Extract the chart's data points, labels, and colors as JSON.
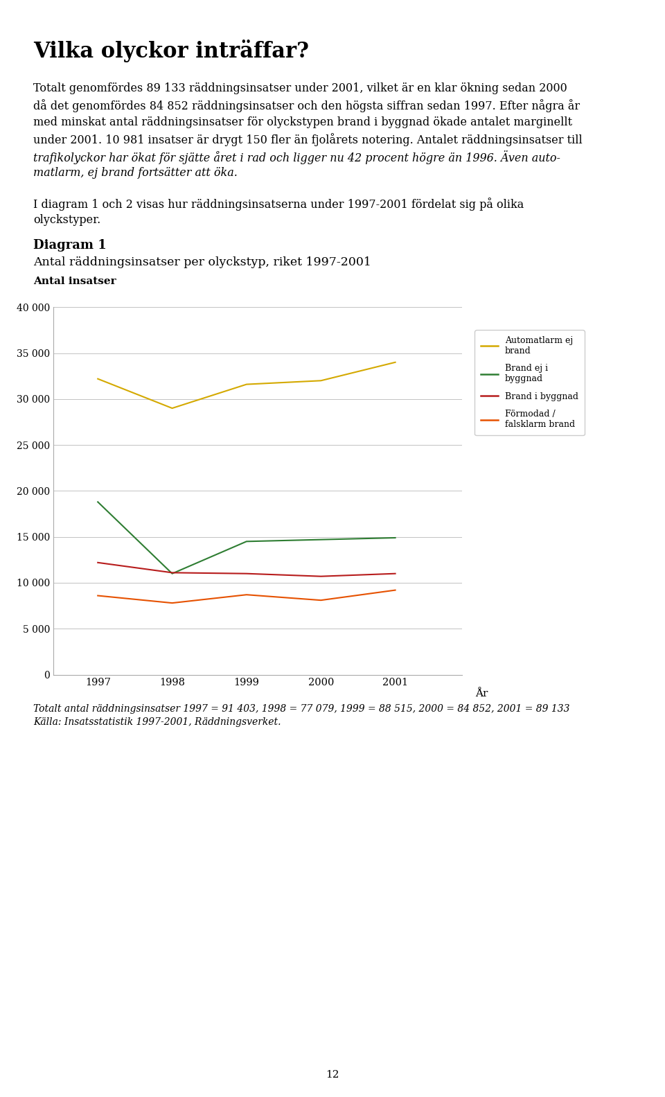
{
  "page_title": "Vilka olyckor inträffar?",
  "body_text_lines": [
    "Totalt genomfördes 89 133 räddningsinsatser under 2001, vilket är en klar ökning sedan 2000",
    "då det genomfördes 84 852 räddningsinsatser och den högsta siffran sedan 1997. Efter några år",
    "med minskat antal räddningsinsatser för olyckstypen brand i byggnad ökade antalet marginellt",
    "under 2001. 10 981 insatser är drygt 150 fler än fjolårets notering. Antalet räddningsinsatser till",
    "trafikolyckor har ökat för sjätte året i rad och ligger nu 42 procent högre än 1996. Även auto-",
    "matlarm, ej brand fortsätter att öka."
  ],
  "body_text_italic_ranges": [
    [
      4,
      13,
      24
    ],
    [
      5,
      0,
      7
    ]
  ],
  "body_text2_lines": [
    "I diagram 1 och 2 visas hur räddningsinsatserna under 1997-2001 fördelat sig på olika",
    "olyckstyper."
  ],
  "diagram_label": "Diagram 1",
  "chart_title": "Antal räddningsinsatser per olyckstyp, riket 1997-2001",
  "ylabel": "Antal insatser",
  "xlabel": "År",
  "years": [
    1997,
    1998,
    1999,
    2000,
    2001
  ],
  "series": [
    {
      "label": "Automatlarm ej\nbrand",
      "values": [
        32200,
        29000,
        31600,
        32000,
        34000
      ],
      "color": "#d4a900"
    },
    {
      "label": "Brand ej i\nbyggnad",
      "values": [
        18800,
        11000,
        14500,
        14700,
        14900
      ],
      "color": "#2e7d32"
    },
    {
      "label": "Brand i byggnad",
      "values": [
        12200,
        11100,
        11000,
        10700,
        11000
      ],
      "color": "#b71c1c"
    },
    {
      "label": "Förmodad /\nfalsklarm brand",
      "values": [
        8600,
        7800,
        8700,
        8100,
        9200
      ],
      "color": "#e65100"
    }
  ],
  "ylim": [
    0,
    40000
  ],
  "yticks": [
    0,
    5000,
    10000,
    15000,
    20000,
    25000,
    30000,
    35000,
    40000
  ],
  "ytick_labels": [
    "0",
    "5 000",
    "10 000",
    "15 000",
    "20 000",
    "25 000",
    "30 000",
    "35 000",
    "40 000"
  ],
  "footnote": "Totalt antal räddningsinsatser 1997 = 91 403, 1998 = 77 079, 1999 = 88 515, 2000 = 84 852, 2001 = 89 133",
  "source": "Källa: Insatsstatistik 1997-2001, Räddningsverket.",
  "page_number": "12",
  "bg_color": "#ffffff",
  "grid_color": "#aaaaaa",
  "text_color": "#000000",
  "line_width": 1.5
}
